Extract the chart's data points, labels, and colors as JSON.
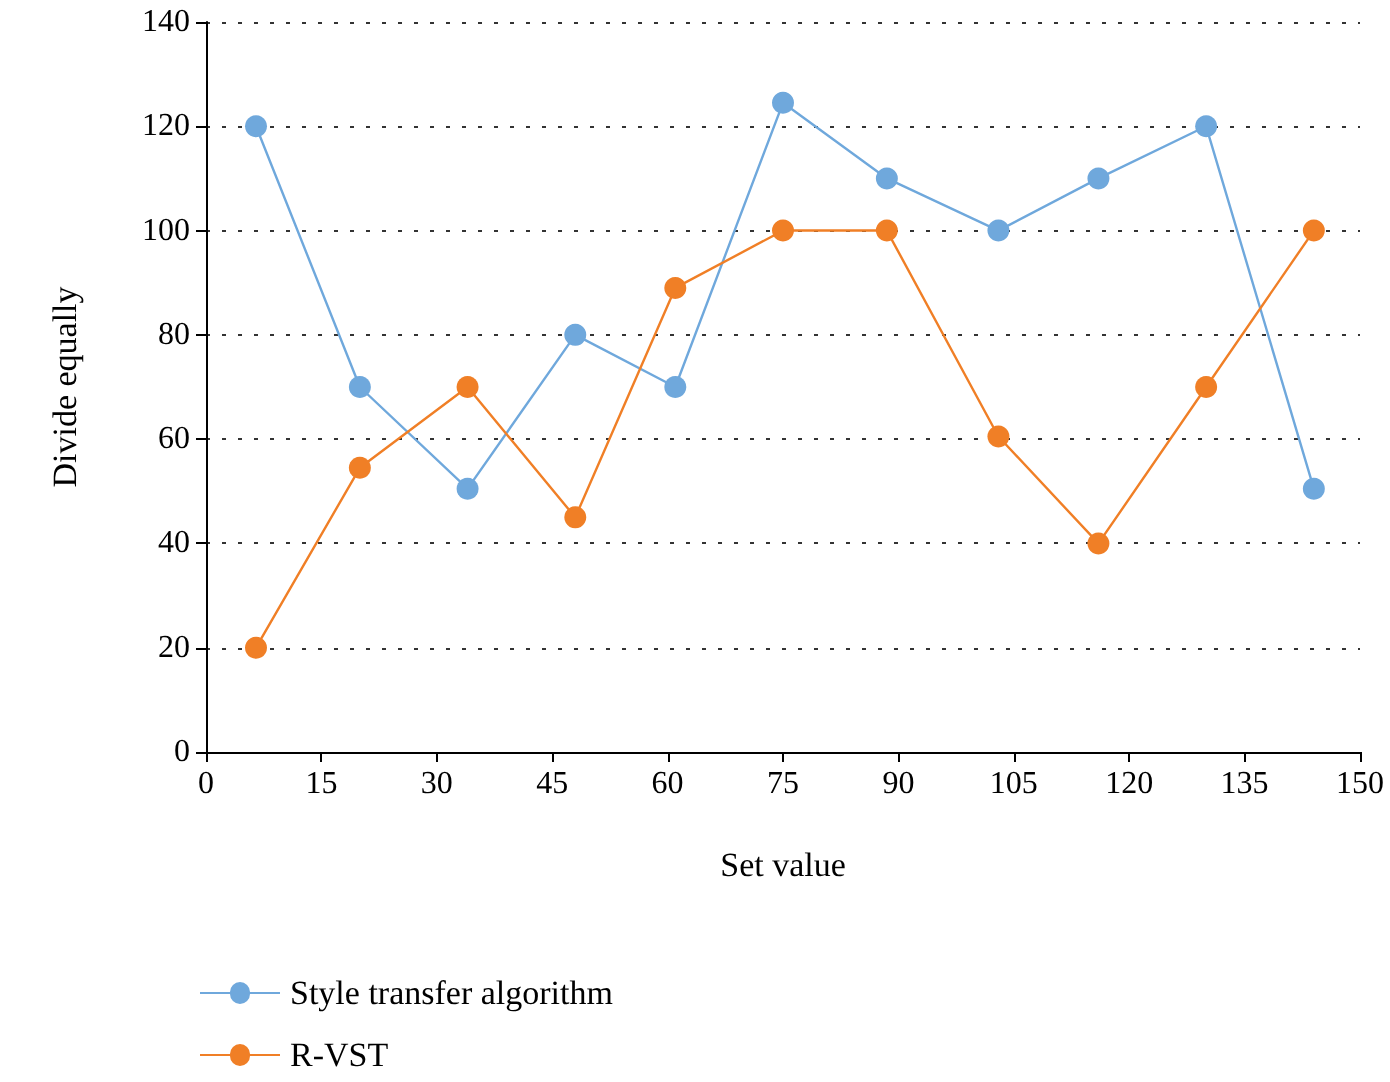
{
  "chart_data": {
    "type": "line",
    "xlabel": "Set value",
    "ylabel": "Divide equally",
    "x": [
      6.5,
      20,
      34,
      48,
      61,
      75,
      88.5,
      103,
      116,
      130,
      144
    ],
    "series": [
      {
        "name": "Style transfer algorithm",
        "color": "#6fa8dc",
        "values": [
          120,
          70,
          50.5,
          80,
          70,
          124.5,
          110,
          100,
          110,
          120,
          50.5
        ]
      },
      {
        "name": "R-VST",
        "color": "#f07f26",
        "values": [
          20,
          54.5,
          70,
          45,
          89,
          100,
          100,
          60.5,
          40,
          70,
          100
        ]
      }
    ],
    "xlim": [
      0,
      150
    ],
    "xticks": [
      0,
      15,
      30,
      45,
      60,
      75,
      90,
      105,
      120,
      135,
      150
    ],
    "ylim": [
      0,
      140
    ],
    "yticks": [
      0,
      20,
      40,
      60,
      80,
      100,
      120,
      140
    ],
    "grid": "y",
    "legend": "bottom",
    "marker": "circle",
    "line_style": "solid"
  }
}
